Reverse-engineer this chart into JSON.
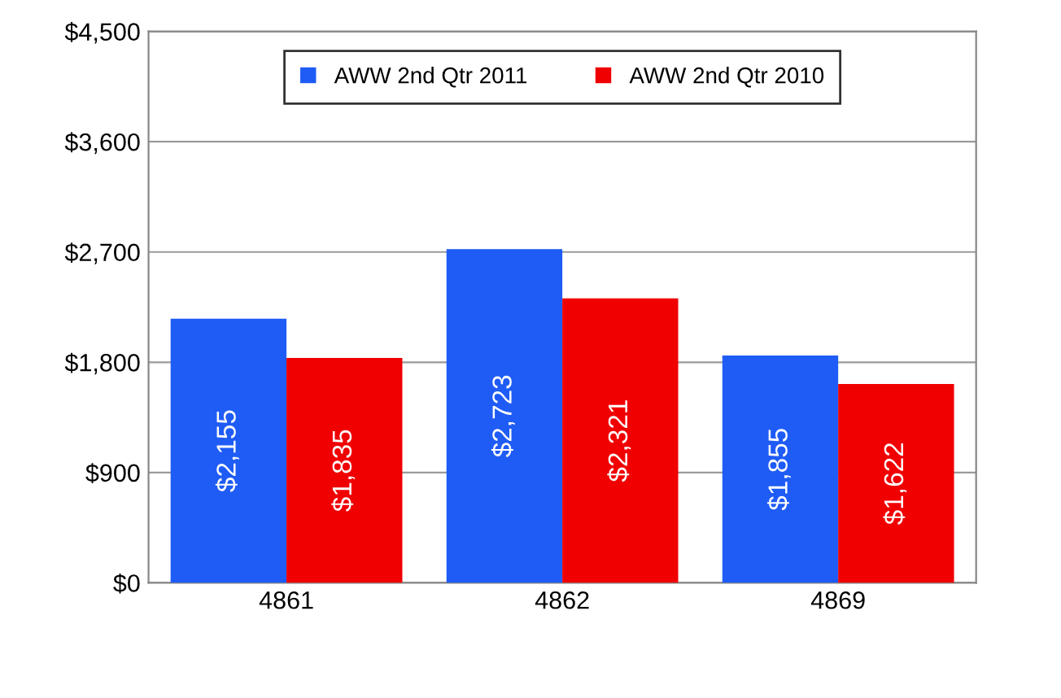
{
  "chart_data": {
    "type": "bar",
    "categories": [
      "4861",
      "4862",
      "4869"
    ],
    "series": [
      {
        "name": "AWW 2nd Qtr 2011",
        "color": "#1f5cf5",
        "values": [
          2155,
          2723,
          1855
        ],
        "value_labels": [
          "$2,155",
          "$2,723",
          "$1,855"
        ]
      },
      {
        "name": "AWW 2nd Qtr 2010",
        "color": "#f00000",
        "values": [
          1835,
          2321,
          1622
        ],
        "value_labels": [
          "$1,835",
          "$2,321",
          "$1,622"
        ]
      }
    ],
    "ylim": [
      0,
      4500
    ],
    "yticks": [
      {
        "value": 0,
        "label": "$0"
      },
      {
        "value": 900,
        "label": "$900"
      },
      {
        "value": 1800,
        "label": "$1,800"
      },
      {
        "value": 2700,
        "label": "$2,700"
      },
      {
        "value": 3600,
        "label": "$3,600"
      },
      {
        "value": 4500,
        "label": "$4,500"
      }
    ],
    "grid": "y",
    "legend": "top"
  }
}
